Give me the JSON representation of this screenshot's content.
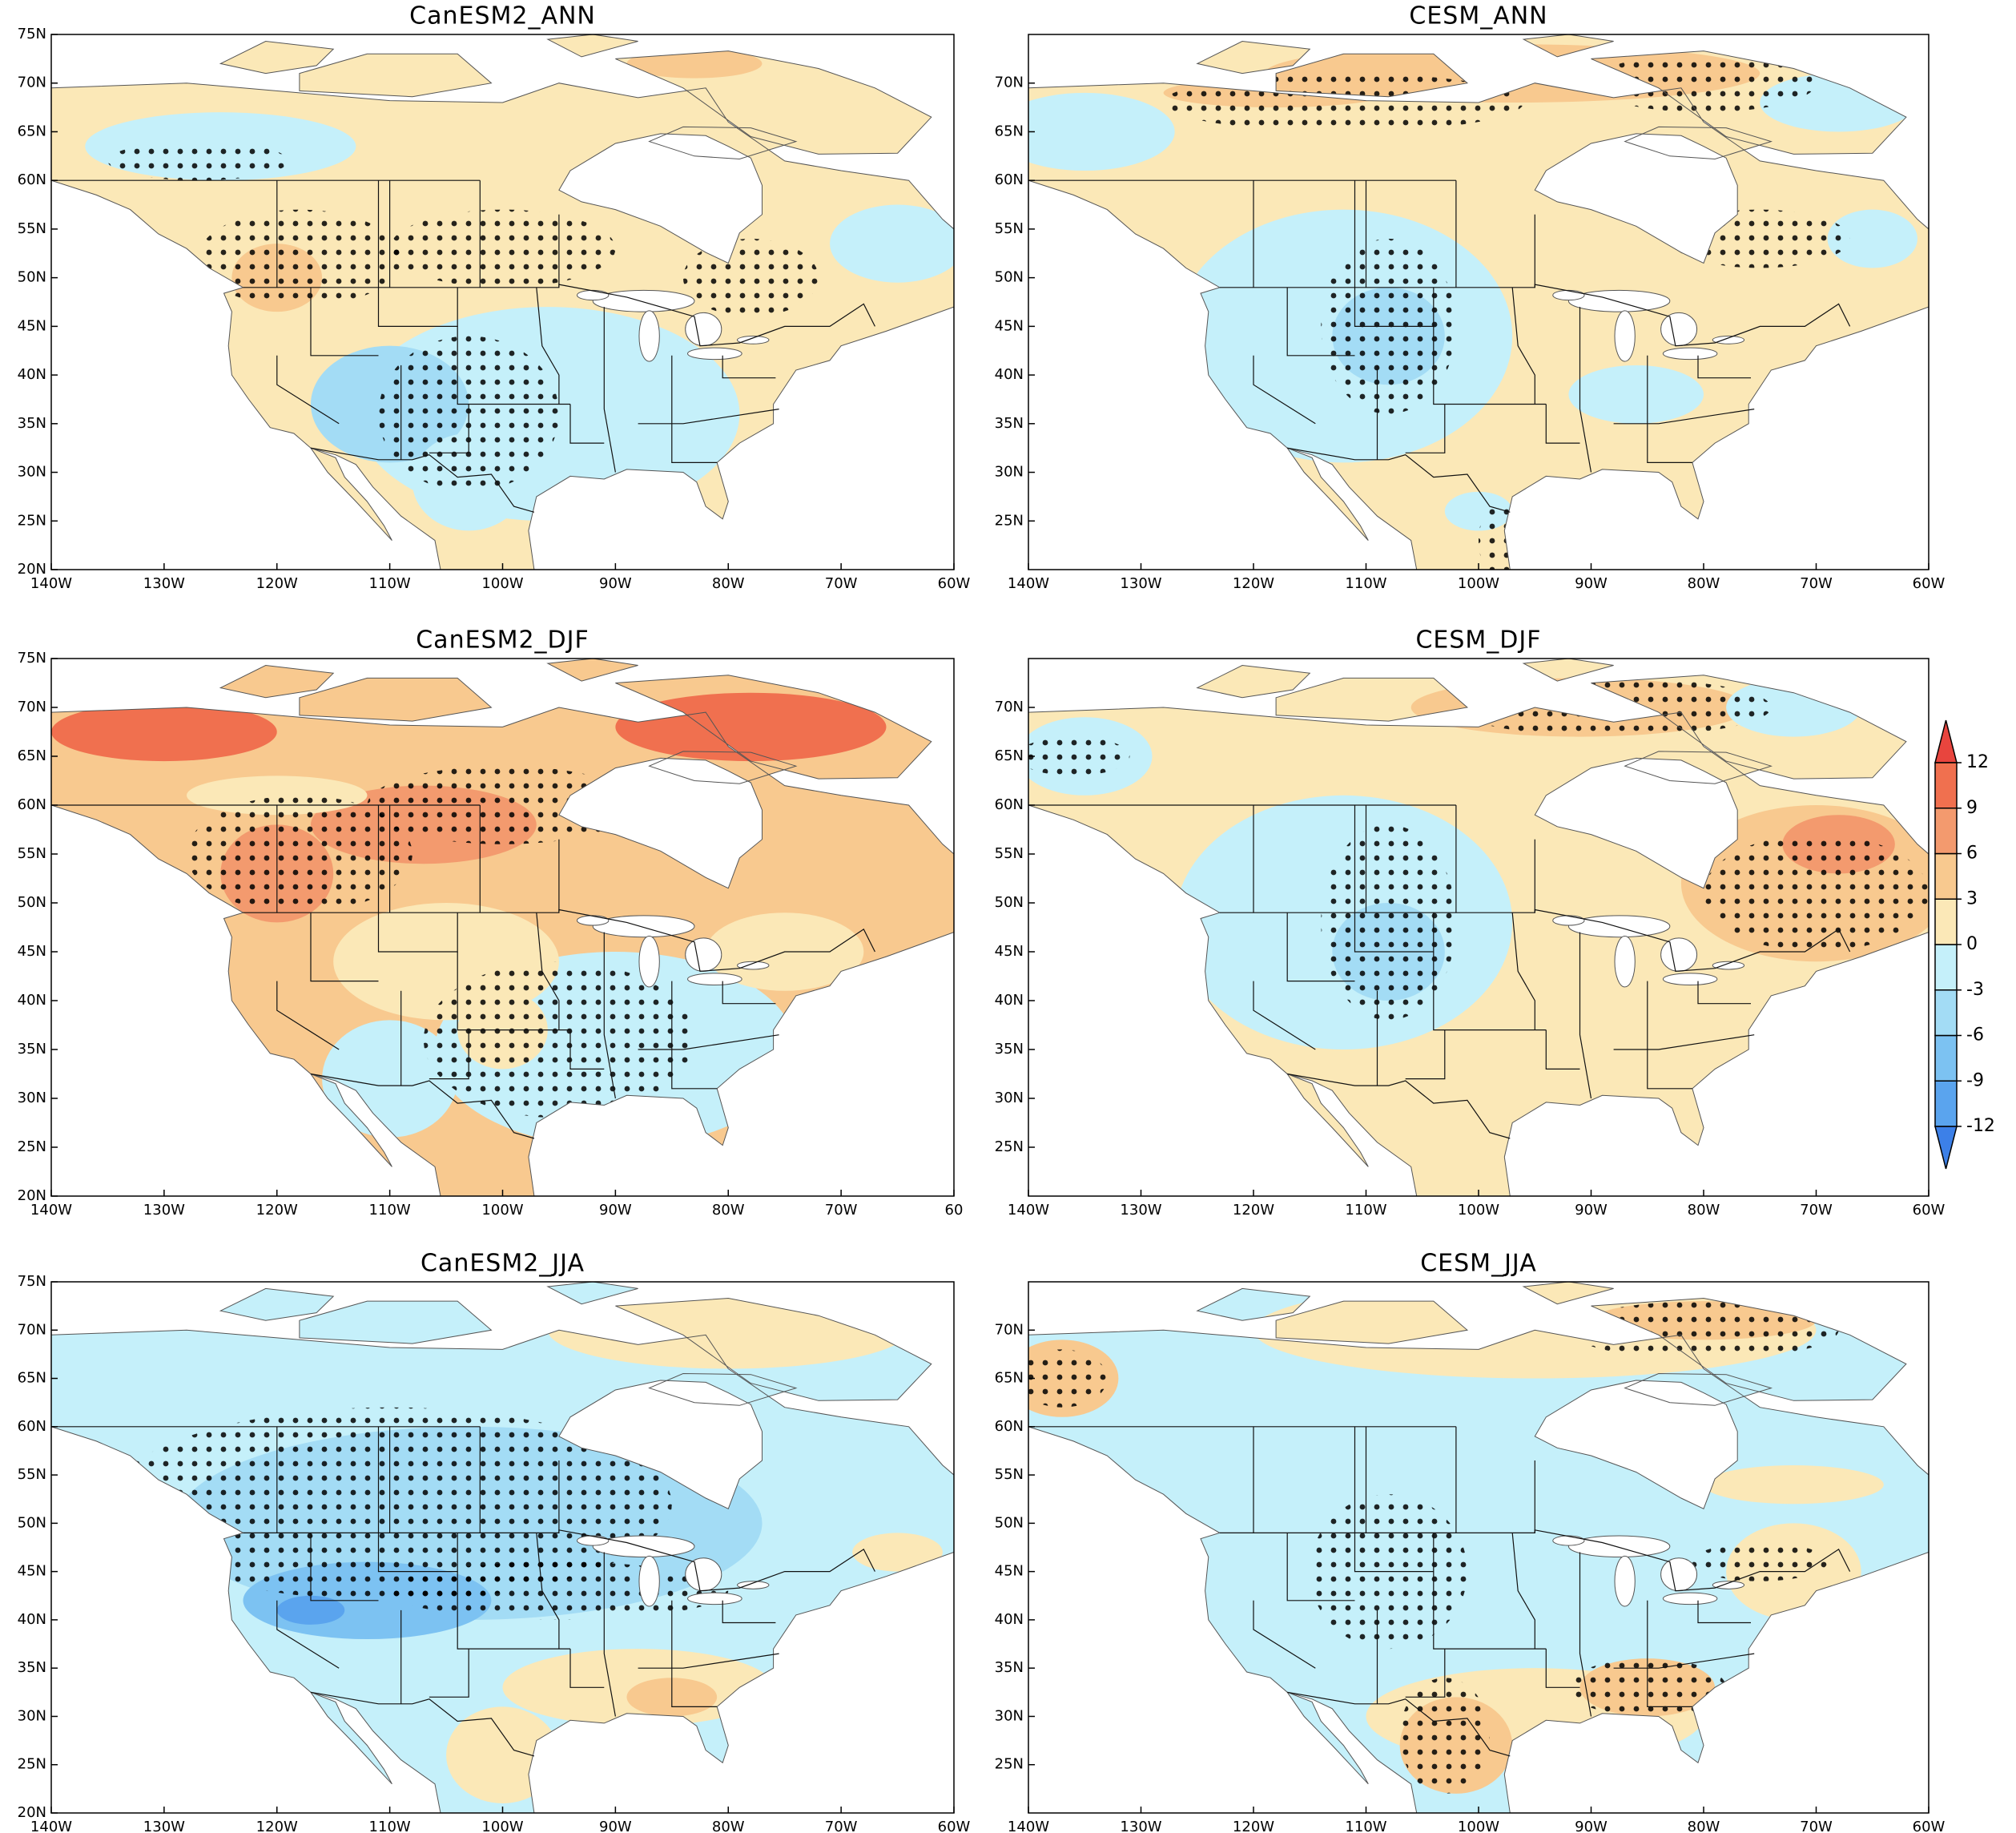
{
  "xlim": [
    -140,
    -60
  ],
  "ylim": [
    20,
    75
  ],
  "panels": [
    {
      "title": "CanESM2_ANN",
      "lon_ticks": [
        {
          "value": -140,
          "label": "140W"
        },
        {
          "value": -130,
          "label": "130W"
        },
        {
          "value": -120,
          "label": "120W"
        },
        {
          "value": -110,
          "label": "110W"
        },
        {
          "value": -100,
          "label": "100W"
        },
        {
          "value": -90,
          "label": "90W"
        },
        {
          "value": -80,
          "label": "80W"
        },
        {
          "value": -70,
          "label": "70W"
        },
        {
          "value": -60,
          "label": "60W"
        }
      ],
      "lat_ticks": [
        {
          "value": 20,
          "label": "20N"
        },
        {
          "value": 25,
          "label": "25N"
        },
        {
          "value": 30,
          "label": "30N"
        },
        {
          "value": 35,
          "label": "35N"
        },
        {
          "value": 40,
          "label": "40N"
        },
        {
          "value": 45,
          "label": "45N"
        },
        {
          "value": 50,
          "label": "50N"
        },
        {
          "value": 55,
          "label": "55N"
        },
        {
          "value": 60,
          "label": "60N"
        },
        {
          "value": 65,
          "label": "65N"
        },
        {
          "value": 70,
          "label": "70N"
        },
        {
          "value": 75,
          "label": "75N"
        }
      ]
    },
    {
      "title": "CESM_ANN",
      "lon_ticks": [
        {
          "value": -140,
          "label": "140W"
        },
        {
          "value": -130,
          "label": "130W"
        },
        {
          "value": -120,
          "label": "120W"
        },
        {
          "value": -110,
          "label": "110W"
        },
        {
          "value": -100,
          "label": "100W"
        },
        {
          "value": -90,
          "label": "90W"
        },
        {
          "value": -80,
          "label": "80W"
        },
        {
          "value": -70,
          "label": "70W"
        },
        {
          "value": -60,
          "label": "60W"
        }
      ],
      "lat_ticks": [
        {
          "value": 25,
          "label": "25N"
        },
        {
          "value": 30,
          "label": "30N"
        },
        {
          "value": 35,
          "label": "35N"
        },
        {
          "value": 40,
          "label": "40N"
        },
        {
          "value": 45,
          "label": "45N"
        },
        {
          "value": 50,
          "label": "50N"
        },
        {
          "value": 55,
          "label": "55N"
        },
        {
          "value": 60,
          "label": "60N"
        },
        {
          "value": 65,
          "label": "65N"
        },
        {
          "value": 70,
          "label": "70N"
        }
      ]
    },
    {
      "title": "CanESM2_DJF",
      "lon_ticks": [
        {
          "value": -140,
          "label": "140W"
        },
        {
          "value": -130,
          "label": "130W"
        },
        {
          "value": -120,
          "label": "120W"
        },
        {
          "value": -110,
          "label": "110W"
        },
        {
          "value": -100,
          "label": "100W"
        },
        {
          "value": -90,
          "label": "90W"
        },
        {
          "value": -80,
          "label": "80W"
        },
        {
          "value": -70,
          "label": "70W"
        },
        {
          "value": -60,
          "label": "60"
        }
      ],
      "lat_ticks": [
        {
          "value": 20,
          "label": "20N"
        },
        {
          "value": 25,
          "label": "25N"
        },
        {
          "value": 30,
          "label": "30N"
        },
        {
          "value": 35,
          "label": "35N"
        },
        {
          "value": 40,
          "label": "40N"
        },
        {
          "value": 45,
          "label": "45N"
        },
        {
          "value": 50,
          "label": "50N"
        },
        {
          "value": 55,
          "label": "55N"
        },
        {
          "value": 60,
          "label": "60N"
        },
        {
          "value": 65,
          "label": "65N"
        },
        {
          "value": 70,
          "label": "70N"
        },
        {
          "value": 75,
          "label": "75N"
        }
      ]
    },
    {
      "title": "CESM_DJF",
      "lon_ticks": [
        {
          "value": -140,
          "label": "140W"
        },
        {
          "value": -130,
          "label": "130W"
        },
        {
          "value": -120,
          "label": "120W"
        },
        {
          "value": -110,
          "label": "110W"
        },
        {
          "value": -100,
          "label": "100W"
        },
        {
          "value": -90,
          "label": "90W"
        },
        {
          "value": -80,
          "label": "80W"
        },
        {
          "value": -70,
          "label": "70W"
        },
        {
          "value": -60,
          "label": "60W"
        }
      ],
      "lat_ticks": [
        {
          "value": 25,
          "label": "25N"
        },
        {
          "value": 30,
          "label": "30N"
        },
        {
          "value": 35,
          "label": "35N"
        },
        {
          "value": 40,
          "label": "40N"
        },
        {
          "value": 45,
          "label": "45N"
        },
        {
          "value": 50,
          "label": "50N"
        },
        {
          "value": 55,
          "label": "55N"
        },
        {
          "value": 60,
          "label": "60N"
        },
        {
          "value": 65,
          "label": "65N"
        },
        {
          "value": 70,
          "label": "70N"
        }
      ]
    },
    {
      "title": "CanESM2_JJA",
      "lon_ticks": [
        {
          "value": -140,
          "label": "140W"
        },
        {
          "value": -130,
          "label": "130W"
        },
        {
          "value": -120,
          "label": "120W"
        },
        {
          "value": -110,
          "label": "110W"
        },
        {
          "value": -100,
          "label": "100W"
        },
        {
          "value": -90,
          "label": "90W"
        },
        {
          "value": -80,
          "label": "80W"
        },
        {
          "value": -70,
          "label": "70W"
        },
        {
          "value": -60,
          "label": "60W"
        }
      ],
      "lat_ticks": [
        {
          "value": 20,
          "label": "20N"
        },
        {
          "value": 25,
          "label": "25N"
        },
        {
          "value": 30,
          "label": "30N"
        },
        {
          "value": 35,
          "label": "35N"
        },
        {
          "value": 40,
          "label": "40N"
        },
        {
          "value": 45,
          "label": "45N"
        },
        {
          "value": 50,
          "label": "50N"
        },
        {
          "value": 55,
          "label": "55N"
        },
        {
          "value": 60,
          "label": "60N"
        },
        {
          "value": 65,
          "label": "65N"
        },
        {
          "value": 70,
          "label": "70N"
        },
        {
          "value": 75,
          "label": "75N"
        }
      ]
    },
    {
      "title": "CESM_JJA",
      "lon_ticks": [
        {
          "value": -140,
          "label": "140W"
        },
        {
          "value": -130,
          "label": "130W"
        },
        {
          "value": -120,
          "label": "120W"
        },
        {
          "value": -110,
          "label": "110W"
        },
        {
          "value": -100,
          "label": "100W"
        },
        {
          "value": -90,
          "label": "90W"
        },
        {
          "value": -80,
          "label": "80W"
        },
        {
          "value": -70,
          "label": "70W"
        },
        {
          "value": -60,
          "label": "60W"
        }
      ],
      "lat_ticks": [
        {
          "value": 25,
          "label": "25N"
        },
        {
          "value": 30,
          "label": "30N"
        },
        {
          "value": 35,
          "label": "35N"
        },
        {
          "value": 40,
          "label": "40N"
        },
        {
          "value": 45,
          "label": "45N"
        },
        {
          "value": 50,
          "label": "50N"
        },
        {
          "value": 55,
          "label": "55N"
        },
        {
          "value": 60,
          "label": "60N"
        },
        {
          "value": 65,
          "label": "65N"
        },
        {
          "value": 70,
          "label": "70N"
        }
      ]
    }
  ],
  "colorbar": {
    "levels": [
      -12,
      -9,
      -6,
      -3,
      0,
      3,
      6,
      9,
      12
    ],
    "colors": [
      "#3c80e8",
      "#5aa4ee",
      "#7cc2f2",
      "#a3dcf5",
      "#c5f0fa",
      "#fbe8b7",
      "#f8c98f",
      "#f39a6e",
      "#f0704f",
      "#e8453e"
    ]
  }
}
